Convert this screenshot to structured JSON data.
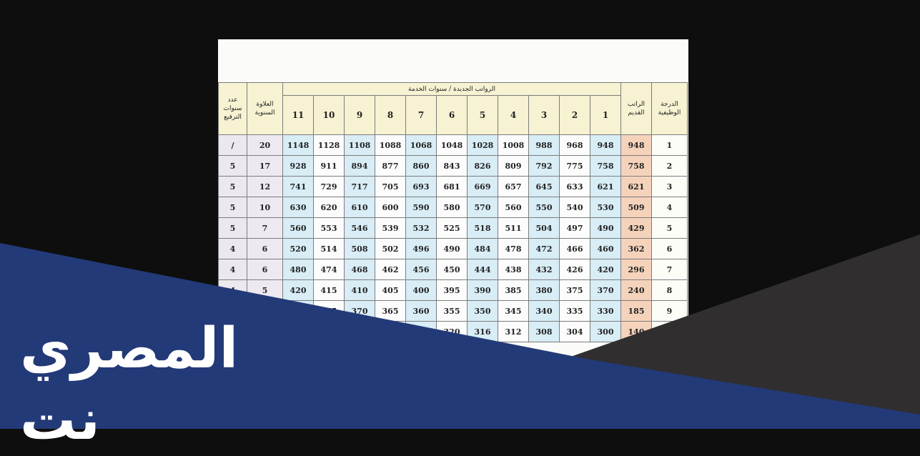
{
  "table": {
    "headers": {
      "years": "عدد سنوات الترفيع",
      "allowance": "العلاوة السنوية",
      "new_salaries": "الرواتب الجديدة / سنوات الخدمة",
      "old_salary": "الراتب القديم",
      "grade": "الدرجة الوظيفية"
    },
    "service_years": [
      "11",
      "10",
      "9",
      "8",
      "7",
      "6",
      "5",
      "4",
      "3",
      "2",
      "1"
    ],
    "rows": [
      {
        "years": "/",
        "allowance": "20",
        "new": [
          "1148",
          "1128",
          "1108",
          "1088",
          "1068",
          "1048",
          "1028",
          "1008",
          "988",
          "968",
          "948"
        ],
        "old": "948",
        "grade": "1"
      },
      {
        "years": "5",
        "allowance": "17",
        "new": [
          "928",
          "911",
          "894",
          "877",
          "860",
          "843",
          "826",
          "809",
          "792",
          "775",
          "758"
        ],
        "old": "758",
        "grade": "2"
      },
      {
        "years": "5",
        "allowance": "12",
        "new": [
          "741",
          "729",
          "717",
          "705",
          "693",
          "681",
          "669",
          "657",
          "645",
          "633",
          "621"
        ],
        "old": "621",
        "grade": "3"
      },
      {
        "years": "5",
        "allowance": "10",
        "new": [
          "630",
          "620",
          "610",
          "600",
          "590",
          "580",
          "570",
          "560",
          "550",
          "540",
          "530"
        ],
        "old": "509",
        "grade": "4"
      },
      {
        "years": "5",
        "allowance": "7",
        "new": [
          "560",
          "553",
          "546",
          "539",
          "532",
          "525",
          "518",
          "511",
          "504",
          "497",
          "490"
        ],
        "old": "429",
        "grade": "5"
      },
      {
        "years": "4",
        "allowance": "6",
        "new": [
          "520",
          "514",
          "508",
          "502",
          "496",
          "490",
          "484",
          "478",
          "472",
          "466",
          "460"
        ],
        "old": "362",
        "grade": "6"
      },
      {
        "years": "4",
        "allowance": "6",
        "new": [
          "480",
          "474",
          "468",
          "462",
          "456",
          "450",
          "444",
          "438",
          "432",
          "426",
          "420"
        ],
        "old": "296",
        "grade": "7"
      },
      {
        "years": "4",
        "allowance": "5",
        "new": [
          "420",
          "415",
          "410",
          "405",
          "400",
          "395",
          "390",
          "385",
          "380",
          "375",
          "370"
        ],
        "old": "240",
        "grade": "8"
      },
      {
        "years": "",
        "allowance": "",
        "new": [
          "",
          "375",
          "370",
          "365",
          "360",
          "355",
          "350",
          "345",
          "340",
          "335",
          "330"
        ],
        "old": "185",
        "grade": "9"
      },
      {
        "years": "",
        "allowance": "",
        "new": [
          "",
          "",
          "",
          "",
          "",
          "320",
          "316",
          "312",
          "308",
          "304",
          "300"
        ],
        "old": "140",
        "grade": ""
      }
    ]
  },
  "banner": {
    "logo_text": "المصري نت"
  },
  "colors": {
    "banner_blue": "#233a78",
    "shade_gray": "#302e2f",
    "old_salary_col": "#f5d3bb",
    "new_salary_blue": "#d8edf6",
    "header_yellow": "#f6f2d2"
  }
}
